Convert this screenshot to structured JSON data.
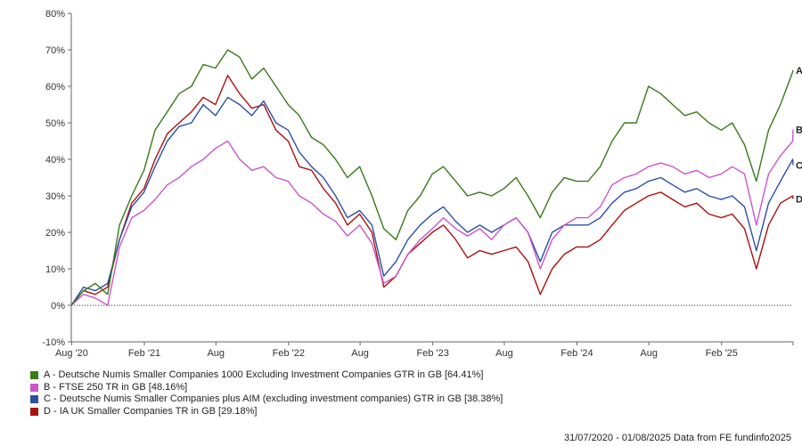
{
  "chart_data": {
    "type": "line",
    "title": "",
    "xlabel": "",
    "ylabel": "",
    "ylim": [
      -10,
      80
    ],
    "yticks": [
      -10,
      0,
      10,
      20,
      30,
      40,
      50,
      60,
      70,
      80
    ],
    "ytick_labels": [
      "-10%",
      "0%",
      "10%",
      "20%",
      "30%",
      "40%",
      "50%",
      "60%",
      "70%",
      "80%"
    ],
    "x_start": "2020-07-31",
    "x_end": "2025-08-01",
    "xticks": [
      {
        "date": "2020-08-01",
        "label": "Aug '20"
      },
      {
        "date": "2021-02-01",
        "label": "Feb '21"
      },
      {
        "date": "2021-08-01",
        "label": "Aug"
      },
      {
        "date": "2022-02-01",
        "label": "Feb '22"
      },
      {
        "date": "2022-08-01",
        "label": "Aug"
      },
      {
        "date": "2023-02-01",
        "label": "Feb '23"
      },
      {
        "date": "2023-08-01",
        "label": "Aug"
      },
      {
        "date": "2024-02-01",
        "label": "Feb '24"
      },
      {
        "date": "2024-08-01",
        "label": "Aug"
      },
      {
        "date": "2025-02-01",
        "label": "Feb '25"
      }
    ],
    "grid": false,
    "zero_line": "dotted",
    "series": [
      {
        "name": "A - Deutsche Numis Smaller Companies 1000 Excluding Investment Companies GTR in GB [64.41%]",
        "end_label": "A",
        "color": "#3a7a1c",
        "x": [
          "2020-07-31",
          "2020-08-31",
          "2020-09-30",
          "2020-10-31",
          "2020-11-30",
          "2020-12-31",
          "2021-01-31",
          "2021-02-28",
          "2021-03-31",
          "2021-04-30",
          "2021-05-31",
          "2021-06-30",
          "2021-07-31",
          "2021-08-31",
          "2021-09-30",
          "2021-10-31",
          "2021-11-30",
          "2021-12-31",
          "2022-01-31",
          "2022-02-28",
          "2022-03-31",
          "2022-04-30",
          "2022-05-31",
          "2022-06-30",
          "2022-07-31",
          "2022-08-31",
          "2022-09-30",
          "2022-10-31",
          "2022-11-30",
          "2022-12-31",
          "2023-01-31",
          "2023-02-28",
          "2023-03-31",
          "2023-04-30",
          "2023-05-31",
          "2023-06-30",
          "2023-07-31",
          "2023-08-31",
          "2023-09-30",
          "2023-10-31",
          "2023-11-30",
          "2023-12-31",
          "2024-01-31",
          "2024-02-29",
          "2024-03-31",
          "2024-04-30",
          "2024-05-31",
          "2024-06-30",
          "2024-07-31",
          "2024-08-31",
          "2024-09-30",
          "2024-10-31",
          "2024-11-30",
          "2024-12-31",
          "2025-01-31",
          "2025-02-28",
          "2025-03-31",
          "2025-04-30",
          "2025-05-31",
          "2025-06-30",
          "2025-07-31",
          "2025-08-01"
        ],
        "y": [
          0,
          4,
          6,
          3,
          22,
          30,
          37,
          48,
          53,
          58,
          60,
          66,
          65,
          70,
          68,
          62,
          65,
          60,
          55,
          52,
          46,
          44,
          40,
          35,
          38,
          30,
          21,
          18,
          26,
          30,
          36,
          38,
          34,
          30,
          31,
          30,
          32,
          35,
          30,
          24,
          31,
          35,
          34,
          34,
          38,
          45,
          50,
          50,
          60,
          58,
          55,
          52,
          53,
          50,
          48,
          50,
          44,
          34,
          48,
          55,
          64,
          64.41
        ]
      },
      {
        "name": "B - FTSE 250 TR in GB [48.16%]",
        "end_label": "B",
        "color": "#cc55cc",
        "x": [
          "2020-07-31",
          "2020-08-31",
          "2020-09-30",
          "2020-10-31",
          "2020-11-30",
          "2020-12-31",
          "2021-01-31",
          "2021-02-28",
          "2021-03-31",
          "2021-04-30",
          "2021-05-31",
          "2021-06-30",
          "2021-07-31",
          "2021-08-31",
          "2021-09-30",
          "2021-10-31",
          "2021-11-30",
          "2021-12-31",
          "2022-01-31",
          "2022-02-28",
          "2022-03-31",
          "2022-04-30",
          "2022-05-31",
          "2022-06-30",
          "2022-07-31",
          "2022-08-31",
          "2022-09-30",
          "2022-10-31",
          "2022-11-30",
          "2022-12-31",
          "2023-01-31",
          "2023-02-28",
          "2023-03-31",
          "2023-04-30",
          "2023-05-31",
          "2023-06-30",
          "2023-07-31",
          "2023-08-31",
          "2023-09-30",
          "2023-10-31",
          "2023-11-30",
          "2023-12-31",
          "2024-01-31",
          "2024-02-29",
          "2024-03-31",
          "2024-04-30",
          "2024-05-31",
          "2024-06-30",
          "2024-07-31",
          "2024-08-31",
          "2024-09-30",
          "2024-10-31",
          "2024-11-30",
          "2024-12-31",
          "2025-01-31",
          "2025-02-28",
          "2025-03-31",
          "2025-04-30",
          "2025-05-31",
          "2025-06-30",
          "2025-07-31",
          "2025-08-01"
        ],
        "y": [
          0,
          3,
          2,
          0,
          16,
          24,
          26,
          29,
          33,
          35,
          38,
          40,
          43,
          45,
          40,
          37,
          38,
          35,
          34,
          30,
          28,
          25,
          23,
          19,
          22,
          17,
          6,
          8,
          14,
          18,
          21,
          24,
          21,
          19,
          21,
          18,
          22,
          24,
          20,
          10,
          18,
          22,
          24,
          24,
          27,
          33,
          35,
          36,
          38,
          39,
          38,
          36,
          37,
          35,
          36,
          38,
          36,
          22,
          36,
          41,
          45,
          48.16
        ]
      },
      {
        "name": "C - Deutsche Numis Smaller Companies plus AIM (excluding investment companies) GTR in GB [38.38%]",
        "end_label": "C",
        "color": "#2c4fa8",
        "x": [
          "2020-07-31",
          "2020-08-31",
          "2020-09-30",
          "2020-10-31",
          "2020-11-30",
          "2020-12-31",
          "2021-01-31",
          "2021-02-28",
          "2021-03-31",
          "2021-04-30",
          "2021-05-31",
          "2021-06-30",
          "2021-07-31",
          "2021-08-31",
          "2021-09-30",
          "2021-10-31",
          "2021-11-30",
          "2021-12-31",
          "2022-01-31",
          "2022-02-28",
          "2022-03-31",
          "2022-04-30",
          "2022-05-31",
          "2022-06-30",
          "2022-07-31",
          "2022-08-31",
          "2022-09-30",
          "2022-10-31",
          "2022-11-30",
          "2022-12-31",
          "2023-01-31",
          "2023-02-28",
          "2023-03-31",
          "2023-04-30",
          "2023-05-31",
          "2023-06-30",
          "2023-07-31",
          "2023-08-31",
          "2023-09-30",
          "2023-10-31",
          "2023-11-30",
          "2023-12-31",
          "2024-01-31",
          "2024-02-29",
          "2024-03-31",
          "2024-04-30",
          "2024-05-31",
          "2024-06-30",
          "2024-07-31",
          "2024-08-31",
          "2024-09-30",
          "2024-10-31",
          "2024-11-30",
          "2024-12-31",
          "2025-01-31",
          "2025-02-28",
          "2025-03-31",
          "2025-04-30",
          "2025-05-31",
          "2025-06-30",
          "2025-07-31",
          "2025-08-01"
        ],
        "y": [
          0,
          5,
          4,
          6,
          18,
          27,
          31,
          38,
          45,
          49,
          50,
          55,
          52,
          57,
          55,
          52,
          56,
          50,
          48,
          42,
          38,
          35,
          30,
          24,
          26,
          22,
          8,
          12,
          18,
          22,
          25,
          27,
          23,
          20,
          22,
          20,
          22,
          24,
          20,
          12,
          20,
          22,
          22,
          22,
          24,
          28,
          31,
          32,
          34,
          35,
          33,
          31,
          32,
          30,
          29,
          30,
          27,
          15,
          28,
          34,
          40,
          38.38
        ]
      },
      {
        "name": "D - IA UK Smaller Companies TR in GB [29.18%]",
        "end_label": "D",
        "color": "#aa1111",
        "x": [
          "2020-07-31",
          "2020-08-31",
          "2020-09-30",
          "2020-10-31",
          "2020-11-30",
          "2020-12-31",
          "2021-01-31",
          "2021-02-28",
          "2021-03-31",
          "2021-04-30",
          "2021-05-31",
          "2021-06-30",
          "2021-07-31",
          "2021-08-31",
          "2021-09-30",
          "2021-10-31",
          "2021-11-30",
          "2021-12-31",
          "2022-01-31",
          "2022-02-28",
          "2022-03-31",
          "2022-04-30",
          "2022-05-31",
          "2022-06-30",
          "2022-07-31",
          "2022-08-31",
          "2022-09-30",
          "2022-10-31",
          "2022-11-30",
          "2022-12-31",
          "2023-01-31",
          "2023-02-28",
          "2023-03-31",
          "2023-04-30",
          "2023-05-31",
          "2023-06-30",
          "2023-07-31",
          "2023-08-31",
          "2023-09-30",
          "2023-10-31",
          "2023-11-30",
          "2023-12-31",
          "2024-01-31",
          "2024-02-29",
          "2024-03-31",
          "2024-04-30",
          "2024-05-31",
          "2024-06-30",
          "2024-07-31",
          "2024-08-31",
          "2024-09-30",
          "2024-10-31",
          "2024-11-30",
          "2024-12-31",
          "2025-01-31",
          "2025-02-28",
          "2025-03-31",
          "2025-04-30",
          "2025-05-31",
          "2025-06-30",
          "2025-07-31",
          "2025-08-01"
        ],
        "y": [
          0,
          4,
          3,
          5,
          18,
          28,
          32,
          40,
          47,
          50,
          53,
          57,
          55,
          63,
          58,
          54,
          55,
          48,
          45,
          38,
          37,
          32,
          28,
          22,
          25,
          20,
          5,
          8,
          14,
          17,
          20,
          22,
          18,
          13,
          15,
          14,
          15,
          16,
          12,
          3,
          10,
          14,
          16,
          16,
          18,
          22,
          26,
          28,
          30,
          31,
          29,
          27,
          28,
          25,
          24,
          25,
          21,
          10,
          22,
          28,
          30,
          29.18
        ]
      }
    ]
  },
  "footer": {
    "text": "31/07/2020 - 01/08/2025 Data from FE fundinfo2025"
  }
}
